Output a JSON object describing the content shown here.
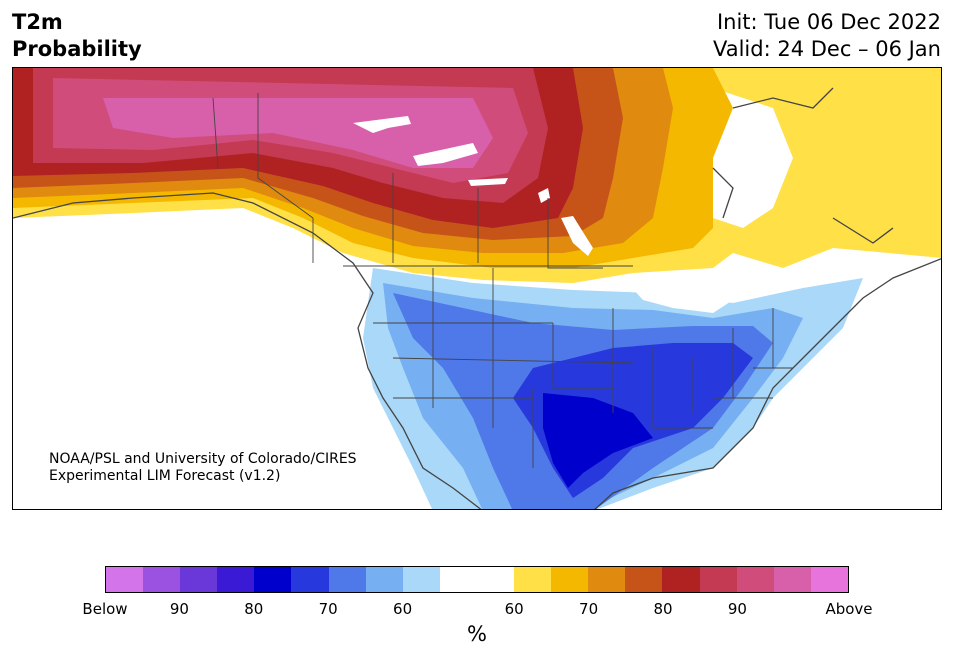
{
  "header": {
    "title_line1": "T2m",
    "title_line2": "Probability",
    "init_text": "Init: Tue 06 Dec 2022",
    "valid_text": "Valid: 24 Dec – 06 Jan"
  },
  "credit": {
    "line1": "NOAA/PSL and University of Colorado/CIRES",
    "line2": "Experimental LIM Forecast (v1.2)"
  },
  "colorbar": {
    "unit": "%",
    "colors": [
      "#d474ea",
      "#9c52e0",
      "#6a38d8",
      "#3a1ad4",
      "#0000cc",
      "#2738dc",
      "#4f78e8",
      "#76aff2",
      "#aad8f8",
      "#ffffff",
      "#ffffff",
      "#ffe047",
      "#f4b800",
      "#e08a10",
      "#c65418",
      "#b02222",
      "#c43a52",
      "#d04c7a",
      "#d860aa",
      "#e674dc"
    ],
    "tick_labels": [
      {
        "label": "Below"
      },
      {
        "label": "90"
      },
      {
        "label": "80"
      },
      {
        "label": "70"
      },
      {
        "label": "60"
      },
      {
        "label": "60"
      },
      {
        "label": "70"
      },
      {
        "label": "80"
      },
      {
        "label": "90"
      },
      {
        "label": "Above"
      }
    ]
  },
  "map": {
    "region": "North America",
    "palette": {
      "warm_90": "#d860aa",
      "warm_85": "#d04c7a",
      "warm_80": "#c43a52",
      "warm_75": "#b02222",
      "warm_70": "#c65418",
      "warm_65": "#e08a10",
      "warm_60": "#f4b800",
      "warm_55": "#ffe047",
      "cold_55": "#aad8f8",
      "cold_60": "#76aff2",
      "cold_65": "#4f78e8",
      "cold_70": "#2738dc",
      "cold_75": "#0000cc",
      "border": "#444444",
      "lake": "#ffffff"
    }
  }
}
